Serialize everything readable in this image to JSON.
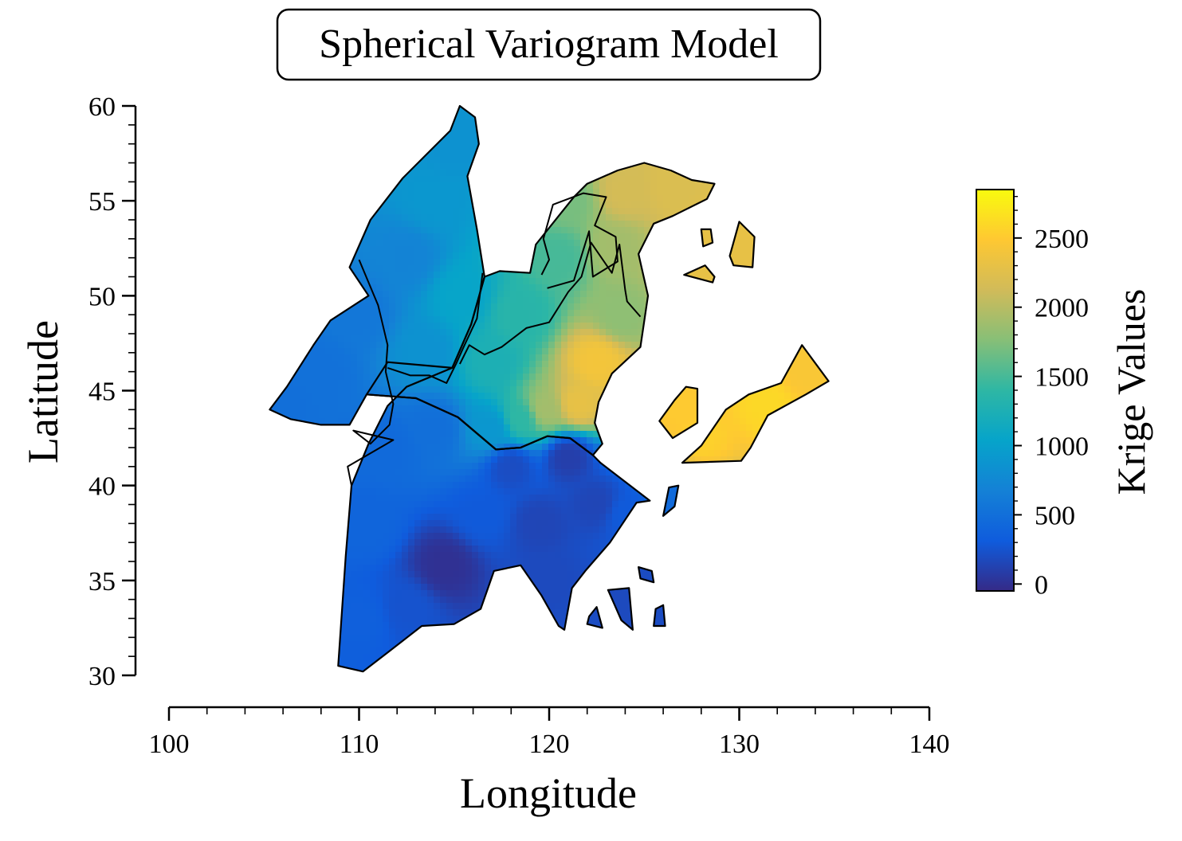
{
  "chart_data": {
    "type": "heatmap",
    "title": "Spherical Variogram Model",
    "xlabel": "Longitude",
    "ylabel": "Latitude",
    "xlim": [
      100,
      140
    ],
    "ylim": [
      30,
      60
    ],
    "x_ticks": [
      100,
      110,
      120,
      130,
      140
    ],
    "y_ticks": [
      30,
      35,
      40,
      45,
      50,
      55,
      60
    ],
    "x_tick_labels": [
      "100",
      "110",
      "120",
      "130",
      "140"
    ],
    "y_tick_labels": [
      "30",
      "35",
      "40",
      "45",
      "50",
      "55",
      "60"
    ],
    "colorbar": {
      "label": "Krige Values",
      "range": [
        -50,
        2850
      ],
      "ticks": [
        0,
        500,
        1000,
        1500,
        2000,
        2500
      ],
      "tick_labels": [
        "0",
        "500",
        "1000",
        "1500",
        "2000",
        "2500"
      ],
      "colors": [
        "#352a87",
        "#0f5cdd",
        "#1481d6",
        "#06a4ca",
        "#2eb7a4",
        "#87bf77",
        "#d1bb59",
        "#fec832",
        "#f9fb0e"
      ]
    },
    "regions": [
      {
        "name": "west",
        "points": [
          [
            105.3,
            44.0
          ],
          [
            106.2,
            45.2
          ],
          [
            107.6,
            47.4
          ],
          [
            108.5,
            48.7
          ],
          [
            110.5,
            50.0
          ],
          [
            109.5,
            51.5
          ],
          [
            110.6,
            54.0
          ],
          [
            112.3,
            56.2
          ],
          [
            113.4,
            57.3
          ],
          [
            114.8,
            58.7
          ],
          [
            115.3,
            60.0
          ],
          [
            116.1,
            59.4
          ],
          [
            116.3,
            58.0
          ],
          [
            115.7,
            56.3
          ],
          [
            116.2,
            53.5
          ],
          [
            116.6,
            51.0
          ],
          [
            115.9,
            48.5
          ],
          [
            114.9,
            46.2
          ],
          [
            112.5,
            45.2
          ],
          [
            111.5,
            44.2
          ],
          [
            110.5,
            42.2
          ],
          [
            109.6,
            40.0
          ],
          [
            109.3,
            36.3
          ],
          [
            108.9,
            30.5
          ],
          [
            110.2,
            30.2
          ],
          [
            111.5,
            31.2
          ],
          [
            113.3,
            32.6
          ],
          [
            115.0,
            32.7
          ],
          [
            116.4,
            33.5
          ],
          [
            117.1,
            35.5
          ],
          [
            118.5,
            35.8
          ],
          [
            119.6,
            34.2
          ],
          [
            120.5,
            32.6
          ],
          [
            120.8,
            32.4
          ],
          [
            121.2,
            34.6
          ],
          [
            121.9,
            35.5
          ],
          [
            123.2,
            37.0
          ],
          [
            124.6,
            39.1
          ],
          [
            125.3,
            39.2
          ],
          [
            122.7,
            41.2
          ],
          [
            122.3,
            41.6
          ],
          [
            121.1,
            42.5
          ],
          [
            119.9,
            42.6
          ],
          [
            118.5,
            42.0
          ],
          [
            117.2,
            41.9
          ],
          [
            115.2,
            43.6
          ],
          [
            113.0,
            44.6
          ],
          [
            110.4,
            44.8
          ],
          [
            109.5,
            43.2
          ],
          [
            108.0,
            43.2
          ],
          [
            106.4,
            43.5
          ]
        ]
      },
      {
        "name": "north-central",
        "points": [
          [
            116.6,
            51.0
          ],
          [
            117.4,
            51.3
          ],
          [
            119.0,
            51.2
          ],
          [
            119.3,
            52.7
          ],
          [
            120.5,
            54.2
          ],
          [
            121.3,
            55.2
          ],
          [
            122.0,
            55.9
          ],
          [
            123.6,
            56.6
          ],
          [
            125.0,
            57.0
          ],
          [
            126.4,
            56.6
          ],
          [
            127.5,
            56.1
          ],
          [
            128.7,
            55.9
          ],
          [
            128.3,
            55.1
          ],
          [
            126.5,
            54.2
          ],
          [
            125.5,
            53.8
          ],
          [
            124.7,
            52.2
          ],
          [
            125.2,
            50.0
          ],
          [
            124.8,
            47.3
          ],
          [
            123.3,
            45.9
          ],
          [
            122.6,
            44.4
          ],
          [
            122.4,
            43.3
          ],
          [
            122.8,
            42.2
          ],
          [
            122.3,
            41.6
          ],
          [
            121.1,
            42.5
          ],
          [
            119.9,
            42.6
          ],
          [
            118.5,
            42.0
          ],
          [
            117.2,
            41.9
          ],
          [
            115.2,
            43.6
          ],
          [
            113.0,
            44.6
          ],
          [
            110.4,
            44.8
          ],
          [
            111.5,
            46.5
          ],
          [
            114.9,
            46.2
          ],
          [
            115.9,
            48.5
          ]
        ]
      },
      {
        "name": "island-a",
        "points": [
          [
            126.6,
            44.5
          ],
          [
            127.2,
            45.2
          ],
          [
            127.8,
            45.1
          ],
          [
            127.8,
            43.3
          ],
          [
            126.5,
            42.5
          ],
          [
            125.8,
            43.4
          ]
        ]
      },
      {
        "name": "island-b",
        "points": [
          [
            127.0,
            41.2
          ],
          [
            128.0,
            42.1
          ],
          [
            129.3,
            44.0
          ],
          [
            130.5,
            44.8
          ],
          [
            132.2,
            45.4
          ],
          [
            133.3,
            47.4
          ],
          [
            134.7,
            45.5
          ],
          [
            133.5,
            44.8
          ],
          [
            131.5,
            43.7
          ],
          [
            130.6,
            42.0
          ],
          [
            130.1,
            41.3
          ]
        ]
      },
      {
        "name": "island-c",
        "points": [
          [
            128.0,
            53.5
          ],
          [
            128.5,
            53.5
          ],
          [
            128.6,
            52.8
          ],
          [
            128.1,
            52.6
          ]
        ]
      },
      {
        "name": "island-d",
        "points": [
          [
            129.5,
            52.1
          ],
          [
            130.0,
            53.9
          ],
          [
            130.8,
            53.1
          ],
          [
            130.7,
            51.5
          ],
          [
            129.7,
            51.6
          ]
        ]
      },
      {
        "name": "island-e",
        "points": [
          [
            127.1,
            51.1
          ],
          [
            128.2,
            51.6
          ],
          [
            128.7,
            51.0
          ],
          [
            128.6,
            50.7
          ]
        ]
      },
      {
        "name": "island-f",
        "points": [
          [
            126.3,
            39.9
          ],
          [
            126.8,
            40.0
          ],
          [
            126.6,
            38.9
          ],
          [
            126.0,
            38.4
          ]
        ]
      },
      {
        "name": "island-g",
        "points": [
          [
            124.7,
            35.7
          ],
          [
            125.4,
            35.5
          ],
          [
            125.5,
            34.9
          ],
          [
            124.8,
            35.1
          ]
        ]
      },
      {
        "name": "island-h",
        "points": [
          [
            123.1,
            34.5
          ],
          [
            124.2,
            34.6
          ],
          [
            124.4,
            32.4
          ],
          [
            123.8,
            32.9
          ]
        ]
      },
      {
        "name": "island-i",
        "points": [
          [
            122.1,
            33.1
          ],
          [
            122.5,
            33.6
          ],
          [
            122.8,
            32.5
          ],
          [
            122.0,
            32.7
          ]
        ]
      },
      {
        "name": "island-j",
        "points": [
          [
            125.6,
            33.5
          ],
          [
            126.0,
            33.7
          ],
          [
            126.1,
            32.6
          ],
          [
            125.5,
            32.6
          ]
        ]
      }
    ],
    "internal_borders": [
      [
        [
          110.0,
          51.9
        ],
        [
          111.0,
          49.5
        ],
        [
          111.5,
          47.4
        ],
        [
          111.4,
          46.0
        ],
        [
          111.8,
          44.3
        ],
        [
          111.6,
          43.2
        ],
        [
          110.6,
          42.2
        ],
        [
          109.7,
          42.9
        ],
        [
          111.8,
          42.4
        ],
        [
          109.4,
          41.0
        ],
        [
          109.6,
          40.0
        ]
      ],
      [
        [
          116.5,
          51.2
        ],
        [
          116.2,
          48.8
        ],
        [
          115.5,
          47.3
        ],
        [
          115.1,
          46.4
        ],
        [
          114.6,
          45.4
        ],
        [
          113.7,
          45.8
        ],
        [
          112.7,
          45.8
        ],
        [
          111.5,
          46.2
        ]
      ],
      [
        [
          115.3,
          46.4
        ],
        [
          115.8,
          47.4
        ],
        [
          116.6,
          46.9
        ],
        [
          117.5,
          47.3
        ],
        [
          118.8,
          48.3
        ],
        [
          120.0,
          48.6
        ],
        [
          121.0,
          50.2
        ],
        [
          121.7,
          51.0
        ],
        [
          122.2,
          52.8
        ],
        [
          123.3,
          51.2
        ],
        [
          123.7,
          52.7
        ],
        [
          124.0,
          50.3
        ],
        [
          124.1,
          49.7
        ],
        [
          124.8,
          48.9
        ]
      ],
      [
        [
          119.6,
          51.1
        ],
        [
          120.0,
          51.9
        ],
        [
          119.7,
          53.0
        ],
        [
          120.2,
          54.8
        ],
        [
          121.8,
          55.4
        ],
        [
          123.0,
          55.2
        ],
        [
          122.4,
          53.7
        ],
        [
          123.5,
          53.1
        ],
        [
          123.6,
          51.8
        ],
        [
          122.3,
          51.0
        ],
        [
          122.1,
          53.4
        ],
        [
          121.3,
          50.8
        ],
        [
          119.9,
          50.4
        ]
      ]
    ],
    "value_field": {
      "description": "interpolated kriging surface; low values in the southwest and south-central, high values in the northeast and eastern islands",
      "anchors": [
        {
          "lon": 106.0,
          "lat": 44.5,
          "value": 500
        },
        {
          "lon": 108.0,
          "lat": 46.0,
          "value": 520
        },
        {
          "lon": 110.0,
          "lat": 49.0,
          "value": 580
        },
        {
          "lon": 112.5,
          "lat": 52.0,
          "value": 700
        },
        {
          "lon": 114.0,
          "lat": 55.0,
          "value": 900
        },
        {
          "lon": 115.0,
          "lat": 58.0,
          "value": 850
        },
        {
          "lon": 115.5,
          "lat": 50.0,
          "value": 1050
        },
        {
          "lon": 113.5,
          "lat": 47.0,
          "value": 850
        },
        {
          "lon": 117.0,
          "lat": 46.5,
          "value": 1250
        },
        {
          "lon": 118.5,
          "lat": 49.0,
          "value": 1350
        },
        {
          "lon": 120.5,
          "lat": 52.0,
          "value": 1500
        },
        {
          "lon": 121.0,
          "lat": 55.0,
          "value": 1700
        },
        {
          "lon": 124.0,
          "lat": 55.5,
          "value": 2150
        },
        {
          "lon": 126.5,
          "lat": 55.8,
          "value": 2200
        },
        {
          "lon": 123.5,
          "lat": 52.5,
          "value": 1900
        },
        {
          "lon": 123.8,
          "lat": 49.0,
          "value": 1800
        },
        {
          "lon": 122.5,
          "lat": 46.5,
          "value": 2400
        },
        {
          "lon": 121.5,
          "lat": 44.3,
          "value": 2300
        },
        {
          "lon": 119.8,
          "lat": 44.0,
          "value": 1900
        },
        {
          "lon": 118.5,
          "lat": 43.5,
          "value": 1400
        },
        {
          "lon": 117.0,
          "lat": 43.0,
          "value": 900
        },
        {
          "lon": 114.0,
          "lat": 43.0,
          "value": 500
        },
        {
          "lon": 111.5,
          "lat": 42.0,
          "value": 450
        },
        {
          "lon": 110.5,
          "lat": 38.0,
          "value": 400
        },
        {
          "lon": 110.2,
          "lat": 33.0,
          "value": 350
        },
        {
          "lon": 112.5,
          "lat": 33.5,
          "value": 250
        },
        {
          "lon": 114.5,
          "lat": 35.8,
          "value": 0
        },
        {
          "lon": 116.5,
          "lat": 38.5,
          "value": 300
        },
        {
          "lon": 118.0,
          "lat": 41.0,
          "value": 200
        },
        {
          "lon": 119.5,
          "lat": 38.0,
          "value": 150
        },
        {
          "lon": 121.0,
          "lat": 41.5,
          "value": 100
        },
        {
          "lon": 122.5,
          "lat": 39.0,
          "value": 150
        },
        {
          "lon": 120.0,
          "lat": 35.0,
          "value": 180
        },
        {
          "lon": 124.0,
          "lat": 38.5,
          "value": 300
        },
        {
          "lon": 126.9,
          "lat": 44.0,
          "value": 2500
        },
        {
          "lon": 128.0,
          "lat": 42.5,
          "value": 2550
        },
        {
          "lon": 131.5,
          "lat": 44.3,
          "value": 2600
        },
        {
          "lon": 133.5,
          "lat": 46.0,
          "value": 2450
        },
        {
          "lon": 128.4,
          "lat": 53.0,
          "value": 2300
        },
        {
          "lon": 130.2,
          "lat": 52.6,
          "value": 2300
        },
        {
          "lon": 127.9,
          "lat": 51.1,
          "value": 2300
        },
        {
          "lon": 126.4,
          "lat": 39.3,
          "value": 450
        },
        {
          "lon": 125.1,
          "lat": 35.3,
          "value": 200
        },
        {
          "lon": 123.8,
          "lat": 33.6,
          "value": 180
        },
        {
          "lon": 122.4,
          "lat": 33.0,
          "value": 200
        },
        {
          "lon": 125.8,
          "lat": 33.1,
          "value": 200
        }
      ]
    }
  }
}
